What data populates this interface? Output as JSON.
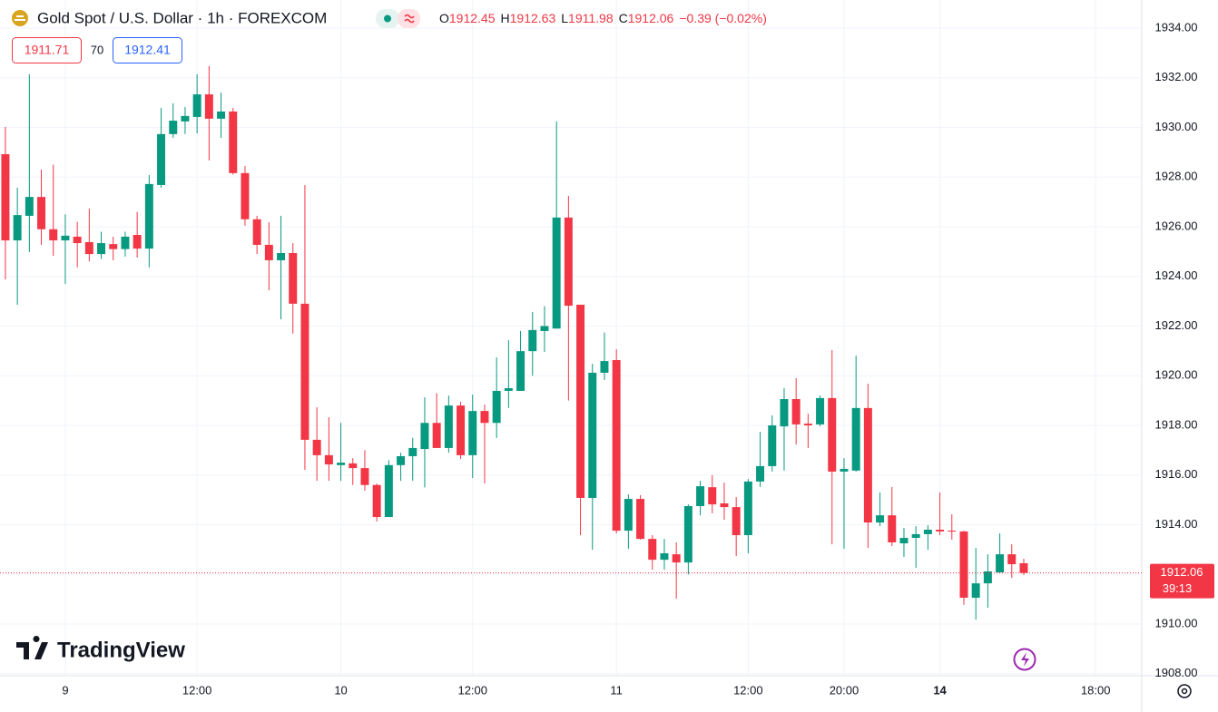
{
  "header": {
    "title": "Gold Spot / U.S. Dollar · 1h · FOREXCOM",
    "ohlc_letters": [
      "O",
      "H",
      "L",
      "C"
    ],
    "change": "−0.39 (−0.02%)",
    "bid": "1911.71",
    "spread": "70",
    "ask": "1912.41"
  },
  "countdown": "39:13",
  "logo": "TradingView",
  "chart_data": {
    "type": "candlestick",
    "up_color": "#089981",
    "down_color": "#f23645",
    "grid": true,
    "ylim": [
      1907.92,
      1935.13
    ],
    "yticks": [
      {
        "value": 1908,
        "label": "1908.00"
      },
      {
        "value": 1910,
        "label": "1910.00"
      },
      {
        "value": 1912,
        "label": "1912.00"
      },
      {
        "value": 1914,
        "label": "1914.00"
      },
      {
        "value": 1916,
        "label": "1916.00"
      },
      {
        "value": 1918,
        "label": "1918.00"
      },
      {
        "value": 1920,
        "label": "1920.00"
      },
      {
        "value": 1922,
        "label": "1922.00"
      },
      {
        "value": 1924,
        "label": "1924.00"
      },
      {
        "value": 1926,
        "label": "1926.00"
      },
      {
        "value": 1928,
        "label": "1928.00"
      },
      {
        "value": 1930,
        "label": "1930.00"
      },
      {
        "value": 1932,
        "label": "1932.00"
      },
      {
        "value": 1934,
        "label": "1934.00"
      }
    ],
    "xlim": [
      -0.45,
      94.85
    ],
    "xticks": [
      {
        "value": 5,
        "label": "9"
      },
      {
        "value": 16,
        "label": "12:00"
      },
      {
        "value": 28,
        "label": "10"
      },
      {
        "value": 39,
        "label": "12:00"
      },
      {
        "value": 51,
        "label": "11"
      },
      {
        "value": 62,
        "label": "12:00"
      },
      {
        "value": 70,
        "label": "20:00"
      },
      {
        "value": 78,
        "label": "14"
      },
      {
        "value": 91,
        "label": "18:00"
      }
    ],
    "open": [
      1928.92,
      1925.45,
      1926.44,
      1927.2,
      1925.9,
      1925.45,
      1925.6,
      1925.38,
      1924.9,
      1925.3,
      1925.1,
      1925.67,
      1925.12,
      1927.68,
      1929.73,
      1930.24,
      1930.42,
      1931.33,
      1930.35,
      1930.64,
      1928.16,
      1926.3,
      1925.27,
      1924.65,
      1924.94,
      1922.9,
      1917.42,
      1916.8,
      1916.4,
      1916.47,
      1916.28,
      1915.6,
      1914.31,
      1916.4,
      1916.76,
      1917.05,
      1918.1,
      1917.09,
      1918.8,
      1916.8,
      1918.58,
      1918.1,
      1919.39,
      1919.39,
      1920.99,
      1921.8,
      1921.9,
      1926.37,
      1922.86,
      1915.08,
      1920.12,
      1920.63,
      1913.76,
      1915.04,
      1913.43,
      1912.59,
      1912.81,
      1912.48,
      1914.75,
      1915.51,
      1914.86,
      1914.71,
      1913.58,
      1915.74,
      1916.36,
      1917.96,
      1919.06,
      1918.07,
      1918.04,
      1919.1,
      1916.14,
      1916.18,
      1918.7,
      1914.09,
      1914.38,
      1913.25,
      1913.47,
      1913.62,
      1913.8,
      1913.76,
      1913.73,
      1911.06,
      1911.64,
      1912.08,
      1912.81,
      1912.45
    ],
    "high": [
      1930.02,
      1927.57,
      1932.14,
      1928.3,
      1928.5,
      1926.5,
      1926.2,
      1926.73,
      1925.8,
      1925.6,
      1925.8,
      1926.6,
      1928.08,
      1930.78,
      1930.97,
      1930.82,
      1932.14,
      1932.47,
      1931.4,
      1930.78,
      1928.45,
      1926.44,
      1926.18,
      1926.44,
      1925.34,
      1927.68,
      1918.73,
      1918.33,
      1918.1,
      1916.68,
      1917.0,
      1915.66,
      1916.6,
      1916.9,
      1917.5,
      1919.13,
      1919.3,
      1919.2,
      1918.95,
      1919.24,
      1918.84,
      1920.74,
      1921.43,
      1921.8,
      1922.57,
      1922.8,
      1930.24,
      1927.24,
      1922.86,
      1920.48,
      1921.74,
      1921.07,
      1915.22,
      1915.19,
      1913.58,
      1913.43,
      1913.29,
      1914.82,
      1915.77,
      1916,
      1915.7,
      1915.11,
      1915.84,
      1917.74,
      1918.4,
      1919.5,
      1919.9,
      1918.47,
      1919.2,
      1921.03,
      1916.68,
      1920.81,
      1919.68,
      1915.3,
      1915.52,
      1913.87,
      1913.94,
      1913.98,
      1915.3,
      1914.42,
      1913.76,
      1913.07,
      1912.81,
      1913.65,
      1913.21,
      1912.63
    ],
    "low": [
      1923.88,
      1922.86,
      1924.98,
      1925.27,
      1924.83,
      1923.7,
      1924.36,
      1924.6,
      1924.7,
      1924.65,
      1924.8,
      1924.76,
      1924.36,
      1927.57,
      1929.58,
      1929.73,
      1929.76,
      1928.67,
      1929.58,
      1928.1,
      1926.04,
      1924.9,
      1923.44,
      1922.27,
      1921.7,
      1916.21,
      1915.77,
      1915.77,
      1915.77,
      1915.6,
      1915.37,
      1914.13,
      1914.31,
      1915.77,
      1915.77,
      1915.5,
      1917.09,
      1916.9,
      1916.65,
      1915.88,
      1915.66,
      1917.49,
      1918.7,
      1919.39,
      1920.0,
      1920.96,
      1921.9,
      1919.0,
      1913.58,
      1912.99,
      1919.83,
      1913.65,
      1913.03,
      1913.4,
      1912.19,
      1912.19,
      1911.02,
      1912.0,
      1914.38,
      1914.46,
      1914.2,
      1912.74,
      1912.85,
      1915.52,
      1916.14,
      1916.18,
      1917.23,
      1917.09,
      1917.96,
      1913.21,
      1913.03,
      1916.14,
      1913.07,
      1913.94,
      1913.14,
      1912.7,
      1912.26,
      1912.99,
      1913.58,
      1913.4,
      1910.77,
      1910.18,
      1910.66,
      1912.04,
      1911.86,
      1911.98
    ],
    "close": [
      1925.45,
      1926.47,
      1927.2,
      1925.9,
      1925.45,
      1925.64,
      1925.34,
      1924.9,
      1925.34,
      1925.1,
      1925.6,
      1925.12,
      1927.72,
      1929.73,
      1930.27,
      1930.46,
      1931.33,
      1930.35,
      1930.64,
      1928.16,
      1926.3,
      1925.27,
      1924.65,
      1924.94,
      1922.9,
      1917.42,
      1916.8,
      1916.43,
      1916.5,
      1916.28,
      1915.6,
      1914.31,
      1916.4,
      1916.76,
      1917.09,
      1918.1,
      1917.09,
      1918.8,
      1916.8,
      1918.58,
      1918.1,
      1919.39,
      1919.5,
      1920.99,
      1921.84,
      1922,
      1926.37,
      1922.82,
      1915.08,
      1920.12,
      1920.59,
      1913.76,
      1915.04,
      1913.43,
      1912.59,
      1912.85,
      1912.48,
      1914.75,
      1915.55,
      1914.82,
      1914.71,
      1913.58,
      1915.74,
      1916.36,
      1918.0,
      1919.06,
      1918.04,
      1918.0,
      1919.1,
      1916.14,
      1916.25,
      1918.7,
      1914.09,
      1914.38,
      1913.29,
      1913.47,
      1913.62,
      1913.8,
      1913.73,
      1913.73,
      1911.06,
      1911.64,
      1912.12,
      1912.81,
      1912.41,
      1912.06
    ]
  }
}
